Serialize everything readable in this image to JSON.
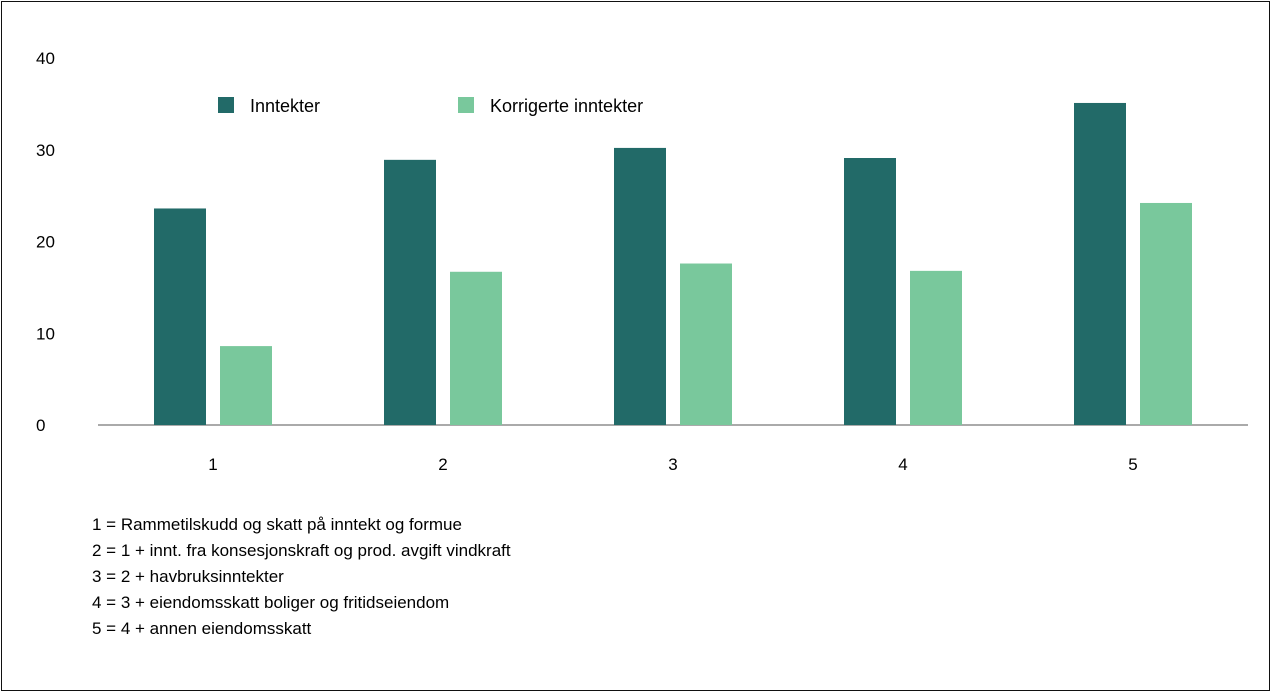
{
  "chart_data": {
    "type": "bar",
    "categories": [
      "1",
      "2",
      "3",
      "4",
      "5"
    ],
    "series": [
      {
        "name": "Inntekter",
        "values": [
          23.6,
          28.9,
          30.2,
          29.1,
          35.1
        ],
        "color": "#226a68"
      },
      {
        "name": "Korrigerte inntekter",
        "values": [
          8.6,
          16.7,
          17.6,
          16.8,
          24.2
        ],
        "color": "#79c89c"
      }
    ],
    "ylim": [
      0,
      40
    ],
    "yticks": [
      0,
      10,
      20,
      30,
      40
    ],
    "grid": false,
    "legend": "top-left, inside plot",
    "title": "",
    "xlabel": "",
    "ylabel": ""
  },
  "notes": [
    "1 = Rammetilskudd og skatt på inntekt og formue",
    "2 = 1 + innt. fra konsesjonskraft og prod. avgift vindkraft",
    "3 = 2 + havbruksinntekter",
    "4 = 3 + eiendomsskatt boliger og fritidseiendom",
    "5 = 4 + annen eiendomsskatt"
  ]
}
